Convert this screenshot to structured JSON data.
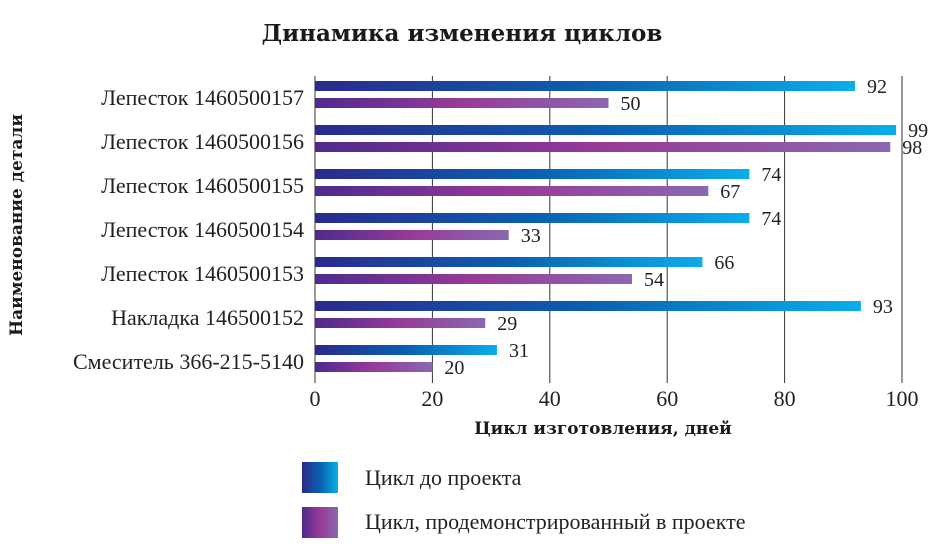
{
  "chart_data": {
    "type": "bar",
    "orientation": "horizontal",
    "title": "Динамика изменения циклов",
    "xlabel": "Цикл изготовления, дней",
    "ylabel": "Наименование детали",
    "xlim": [
      0,
      100
    ],
    "xticks": [
      0,
      20,
      40,
      60,
      80,
      100
    ],
    "grid": true,
    "legend_position": "bottom",
    "categories": [
      "Лепесток 1460500157",
      "Лепесток 1460500156",
      "Лепесток 1460500155",
      "Лепесток 1460500154",
      "Лепесток 1460500153",
      "Накладка 146500152",
      "Смеситель 366-215-5140"
    ],
    "series": [
      {
        "name": "Цикл до проекта",
        "values": [
          92,
          99,
          74,
          74,
          66,
          93,
          31
        ],
        "color_start": "#2b2a8c",
        "color_end": "#0aa8e8"
      },
      {
        "name": "Цикл, продемонстрированный в проекте",
        "values": [
          50,
          98,
          67,
          33,
          54,
          29,
          20
        ],
        "color_start": "#4e2a8e",
        "color_mid": "#9a3a9a",
        "color_end": "#8a6ab0"
      }
    ]
  }
}
